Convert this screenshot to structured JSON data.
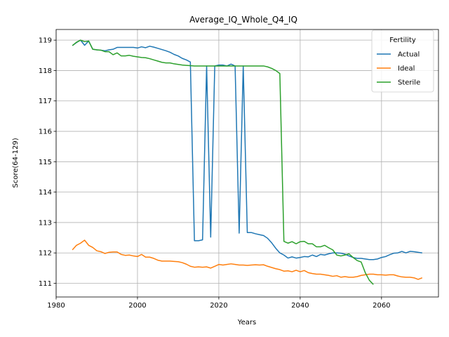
{
  "chart_data": {
    "type": "line",
    "title": "Average_IQ_Whole_Q4_IQ",
    "xlabel": "Years",
    "ylabel": "Score(64-129)",
    "xlim": [
      1980,
      2074
    ],
    "ylim": [
      110.55,
      119.35
    ],
    "xticks": [
      1980,
      2000,
      2020,
      2040,
      2060
    ],
    "yticks": [
      111,
      112,
      113,
      114,
      115,
      116,
      117,
      118,
      119
    ],
    "grid": true,
    "legend": {
      "title": "Fertility",
      "placement": "top-right"
    },
    "series": [
      {
        "name": "Actual",
        "color": "#1f77b4",
        "x": [
          1984,
          1985,
          1986,
          1987,
          1988,
          1989,
          1990,
          1991,
          1992,
          1993,
          1994,
          1995,
          1996,
          1997,
          1998,
          1999,
          2000,
          2001,
          2002,
          2003,
          2004,
          2005,
          2006,
          2007,
          2008,
          2009,
          2010,
          2011,
          2012,
          2013,
          2014,
          2015,
          2016,
          2017,
          2018,
          2019,
          2020,
          2021,
          2022,
          2023,
          2024,
          2025,
          2026,
          2027,
          2028,
          2029,
          2030,
          2031,
          2032,
          2033,
          2034,
          2035,
          2036,
          2037,
          2038,
          2039,
          2040,
          2041,
          2042,
          2043,
          2044,
          2045,
          2046,
          2047,
          2048,
          2049,
          2050,
          2051,
          2052,
          2053,
          2054,
          2055,
          2056,
          2057,
          2058,
          2059,
          2060,
          2061,
          2062,
          2063,
          2064,
          2065,
          2066,
          2067,
          2068,
          2069,
          2070
        ],
        "values": [
          118.82,
          118.92,
          119.0,
          118.83,
          118.97,
          118.7,
          118.68,
          118.67,
          118.65,
          118.68,
          118.7,
          118.76,
          118.76,
          118.76,
          118.76,
          118.76,
          118.74,
          118.78,
          118.75,
          118.8,
          118.77,
          118.73,
          118.69,
          118.65,
          118.6,
          118.53,
          118.48,
          118.4,
          118.35,
          118.28,
          112.4,
          112.4,
          112.43,
          118.15,
          112.52,
          118.15,
          118.18,
          118.18,
          118.15,
          118.21,
          118.15,
          112.65,
          118.15,
          112.67,
          112.67,
          112.63,
          112.6,
          112.57,
          112.48,
          112.33,
          112.15,
          112.0,
          111.93,
          111.83,
          111.87,
          111.83,
          111.85,
          111.88,
          111.87,
          111.93,
          111.88,
          111.95,
          111.93,
          111.97,
          112.0,
          112.0,
          111.99,
          111.96,
          111.9,
          111.85,
          111.82,
          111.82,
          111.8,
          111.78,
          111.78,
          111.8,
          111.85,
          111.88,
          111.94,
          111.99,
          112.0,
          112.05,
          112.0,
          112.05,
          112.04,
          112.02,
          112.0
        ]
      },
      {
        "name": "Ideal",
        "color": "#ff7f0e",
        "x": [
          1984,
          1985,
          1986,
          1987,
          1988,
          1989,
          1990,
          1991,
          1992,
          1993,
          1994,
          1995,
          1996,
          1997,
          1998,
          1999,
          2000,
          2001,
          2002,
          2003,
          2004,
          2005,
          2006,
          2007,
          2008,
          2009,
          2010,
          2011,
          2012,
          2013,
          2014,
          2015,
          2016,
          2017,
          2018,
          2019,
          2020,
          2021,
          2022,
          2023,
          2024,
          2025,
          2026,
          2027,
          2028,
          2029,
          2030,
          2031,
          2032,
          2033,
          2034,
          2035,
          2036,
          2037,
          2038,
          2039,
          2040,
          2041,
          2042,
          2043,
          2044,
          2045,
          2046,
          2047,
          2048,
          2049,
          2050,
          2051,
          2052,
          2053,
          2054,
          2055,
          2056,
          2057,
          2058,
          2059,
          2060,
          2061,
          2062,
          2063,
          2064,
          2065,
          2066,
          2067,
          2068,
          2069,
          2070
        ],
        "values": [
          112.1,
          112.25,
          112.32,
          112.42,
          112.25,
          112.18,
          112.07,
          112.04,
          111.98,
          112.02,
          112.03,
          112.03,
          111.95,
          111.92,
          111.93,
          111.9,
          111.88,
          111.95,
          111.86,
          111.86,
          111.82,
          111.76,
          111.73,
          111.73,
          111.73,
          111.72,
          111.71,
          111.68,
          111.63,
          111.56,
          111.53,
          111.54,
          111.53,
          111.54,
          111.5,
          111.56,
          111.62,
          111.6,
          111.62,
          111.64,
          111.62,
          111.6,
          111.6,
          111.59,
          111.6,
          111.61,
          111.6,
          111.61,
          111.56,
          111.52,
          111.48,
          111.45,
          111.4,
          111.41,
          111.38,
          111.43,
          111.38,
          111.42,
          111.35,
          111.32,
          111.3,
          111.3,
          111.28,
          111.26,
          111.23,
          111.25,
          111.2,
          111.22,
          111.2,
          111.2,
          111.22,
          111.26,
          111.28,
          111.3,
          111.3,
          111.28,
          111.28,
          111.27,
          111.28,
          111.28,
          111.24,
          111.21,
          111.2,
          111.2,
          111.18,
          111.13,
          111.18
        ]
      },
      {
        "name": "Sterile",
        "color": "#2ca02c",
        "x": [
          1984,
          1985,
          1986,
          1987,
          1988,
          1989,
          1990,
          1991,
          1992,
          1993,
          1994,
          1995,
          1996,
          1997,
          1998,
          1999,
          2000,
          2001,
          2002,
          2003,
          2004,
          2005,
          2006,
          2007,
          2008,
          2009,
          2010,
          2011,
          2012,
          2013,
          2014,
          2015,
          2016,
          2017,
          2018,
          2019,
          2020,
          2021,
          2022,
          2023,
          2024,
          2025,
          2026,
          2027,
          2028,
          2029,
          2030,
          2031,
          2032,
          2033,
          2034,
          2035,
          2036,
          2037,
          2038,
          2039,
          2040,
          2041,
          2042,
          2043,
          2044,
          2045,
          2046,
          2047,
          2048,
          2049,
          2050,
          2051,
          2052,
          2053,
          2054,
          2055,
          2056,
          2057,
          2058
        ],
        "values": [
          118.82,
          118.93,
          119.0,
          118.95,
          118.97,
          118.7,
          118.68,
          118.67,
          118.62,
          118.62,
          118.52,
          118.58,
          118.48,
          118.48,
          118.5,
          118.47,
          118.45,
          118.43,
          118.42,
          118.39,
          118.35,
          118.31,
          118.27,
          118.25,
          118.25,
          118.22,
          118.2,
          118.18,
          118.17,
          118.16,
          118.15,
          118.15,
          118.15,
          118.15,
          118.15,
          118.15,
          118.15,
          118.15,
          118.15,
          118.15,
          118.15,
          118.15,
          118.15,
          118.15,
          118.15,
          118.15,
          118.15,
          118.15,
          118.12,
          118.07,
          118.0,
          117.9,
          112.38,
          112.32,
          112.37,
          112.3,
          112.37,
          112.38,
          112.3,
          112.3,
          112.2,
          112.2,
          112.25,
          112.17,
          112.1,
          111.93,
          111.9,
          111.93,
          111.97,
          111.85,
          111.75,
          111.7,
          111.35,
          111.1,
          110.96
        ]
      }
    ]
  }
}
